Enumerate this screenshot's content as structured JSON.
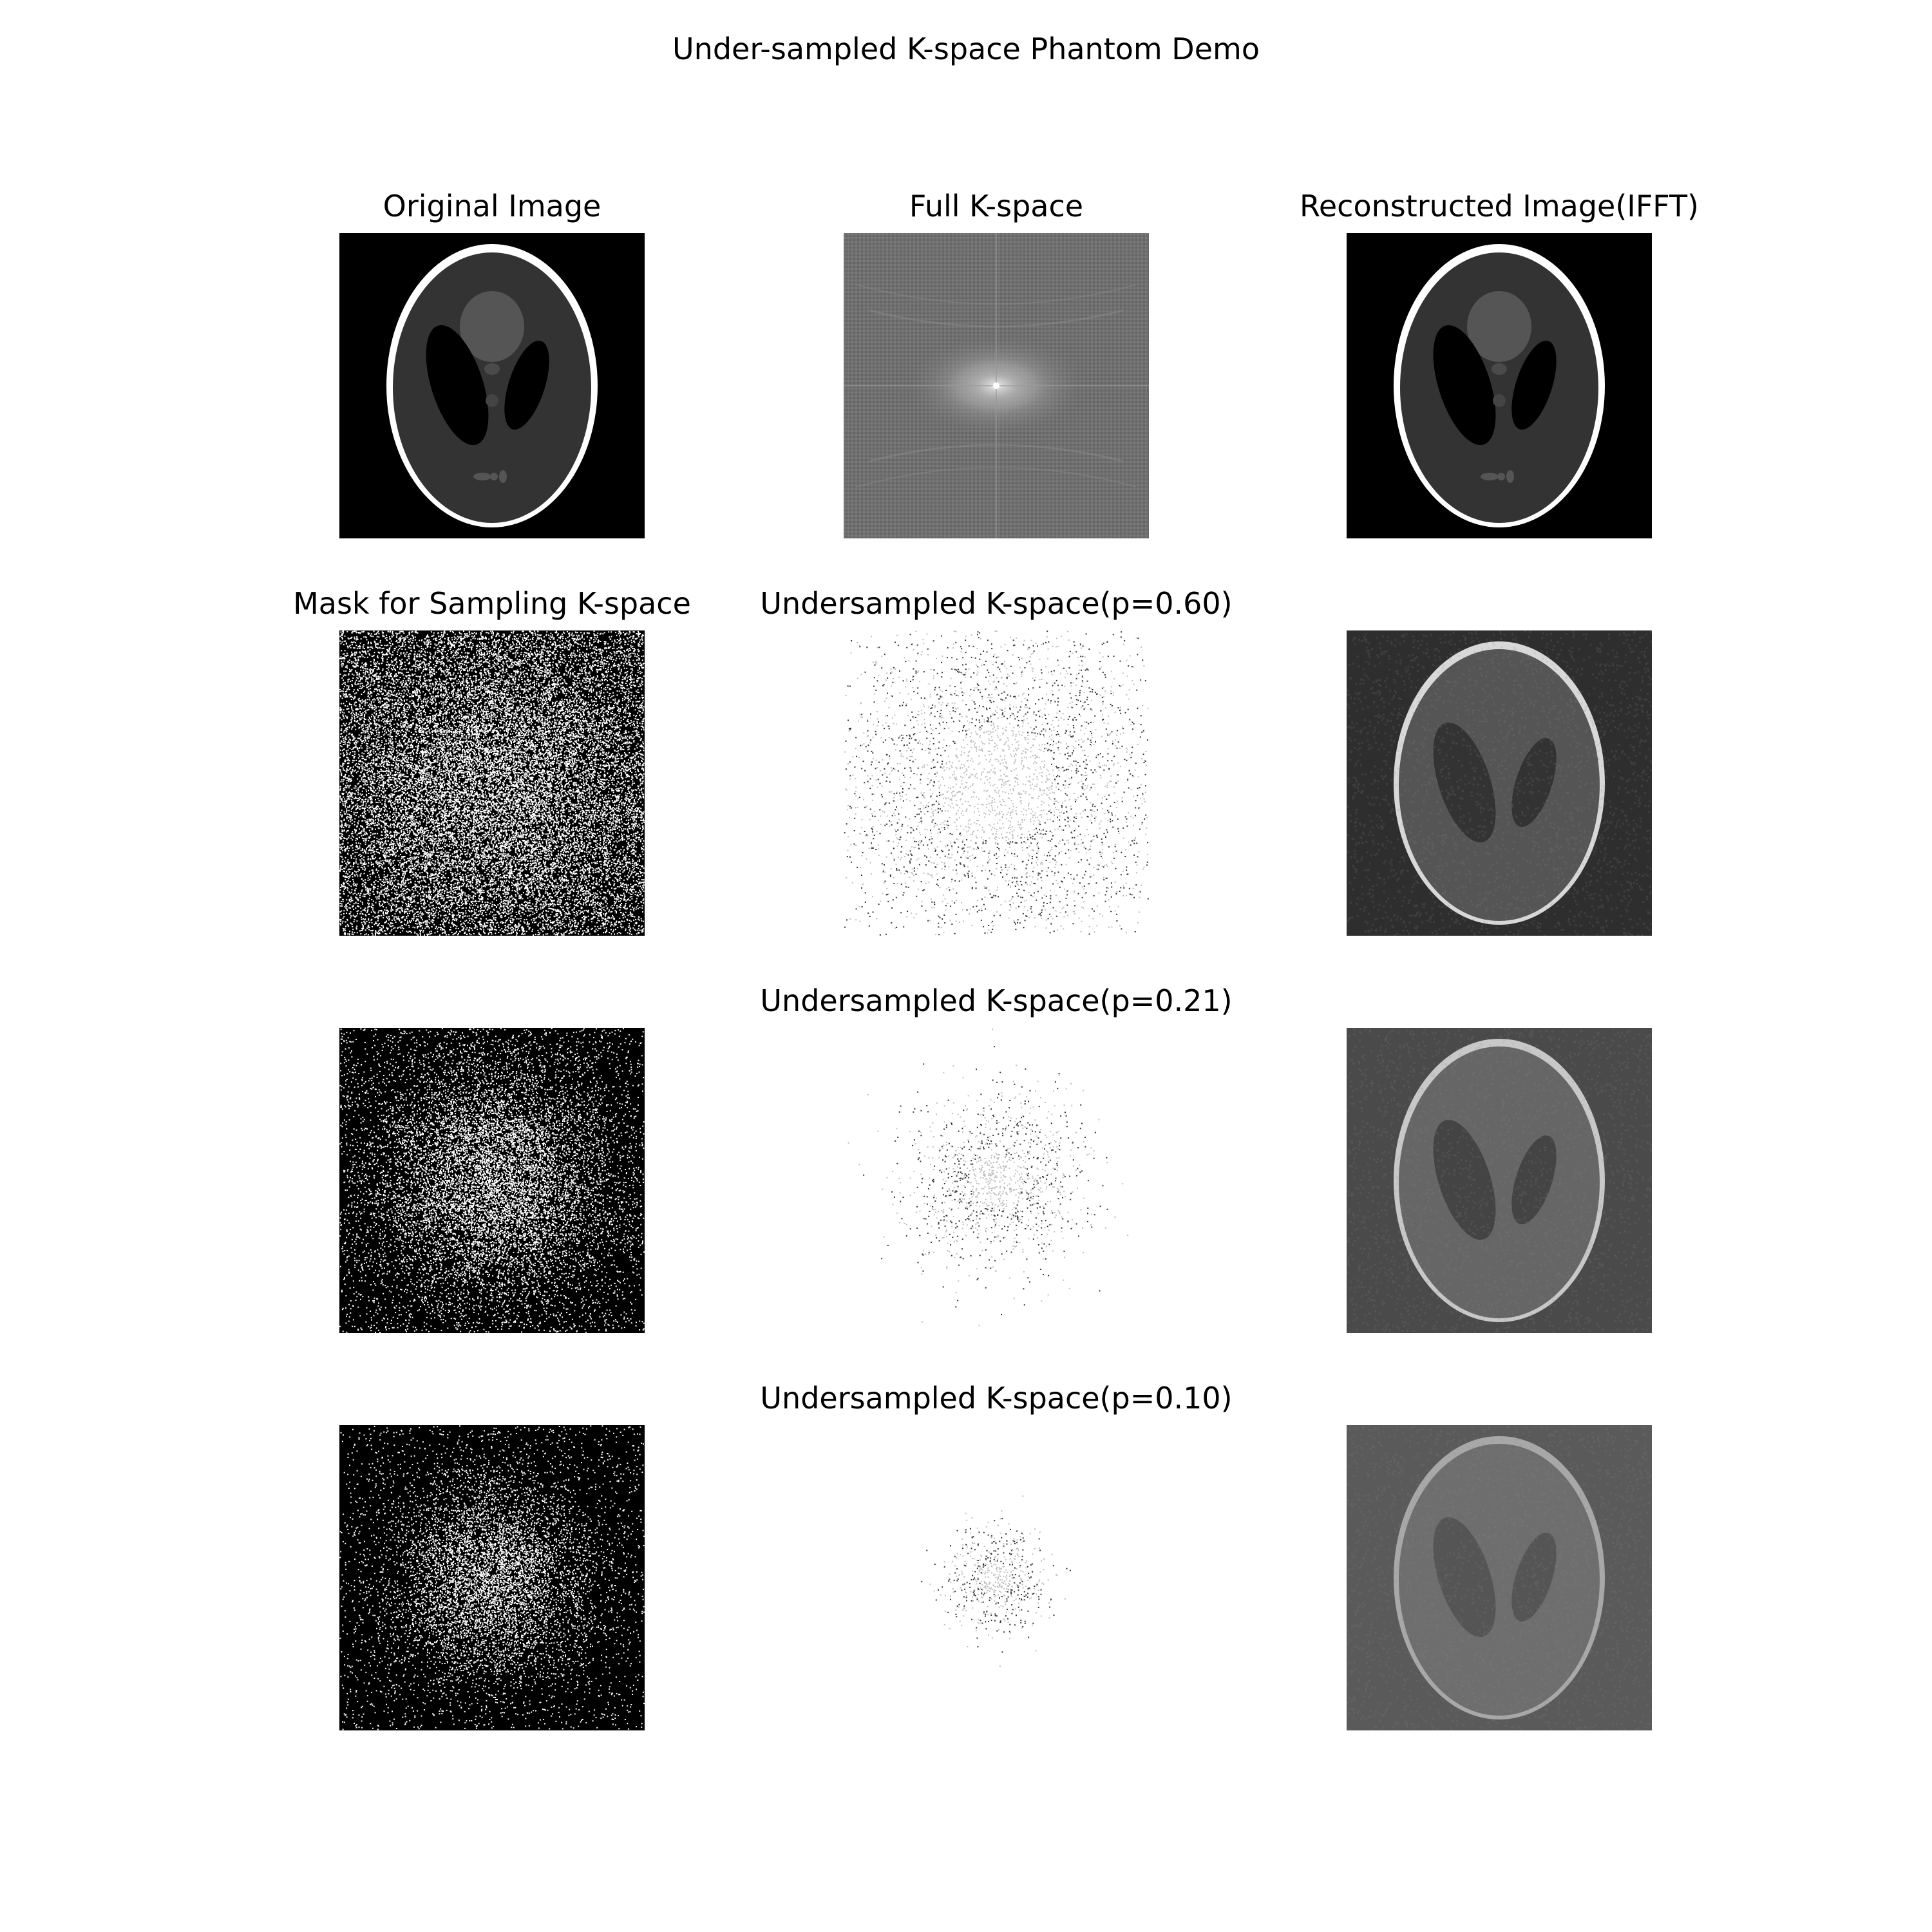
{
  "figure": {
    "title": "Under-sampled K-space Phantom Demo"
  },
  "panels": {
    "original_image": {
      "title": "Original Image"
    },
    "full_kspace": {
      "title": "Full K-space"
    },
    "reconstructed_ifft": {
      "title": "Reconstructed Image(IFFT)"
    },
    "mask": {
      "title": "Mask for Sampling K-space"
    },
    "undersampled_060": {
      "title": "Undersampled K-space(p=0.60)",
      "p": 0.6
    },
    "undersampled_021": {
      "title": "Undersampled K-space(p=0.21)",
      "p": 0.21
    },
    "undersampled_010": {
      "title": "Undersampled K-space(p=0.10)",
      "p": 0.1
    }
  },
  "colormap": "gray"
}
